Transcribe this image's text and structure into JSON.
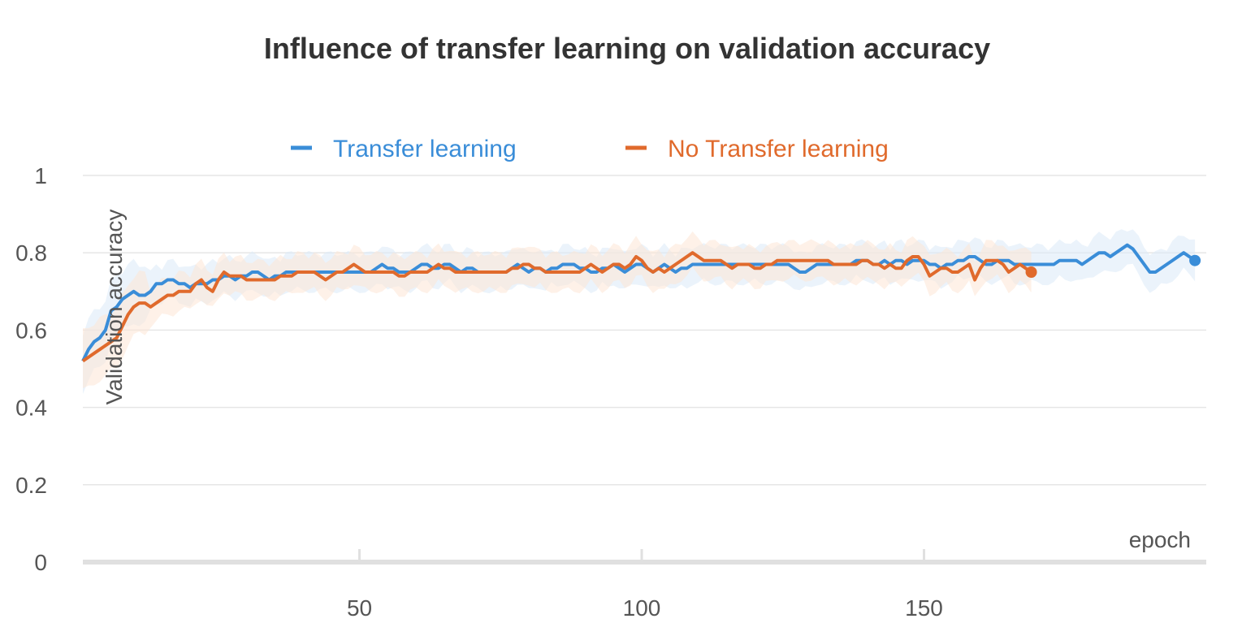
{
  "chart_data": {
    "type": "line",
    "title": "Influence of transfer learning on validation accuracy",
    "xlabel": "epoch",
    "ylabel": "Validation accuracy",
    "xlim": [
      1,
      200
    ],
    "ylim": [
      0,
      1
    ],
    "x_ticks": [
      50,
      100,
      150
    ],
    "y_ticks": [
      0,
      0.2,
      0.4,
      0.6,
      0.8,
      1
    ],
    "y_tick_labels": [
      "0",
      "0.2",
      "0.4",
      "0.6",
      "0.8",
      "1"
    ],
    "x_tick_labels": [
      "50",
      "100",
      "150"
    ],
    "grid": true,
    "legend_position": "top-center",
    "series": [
      {
        "name": "Transfer learning",
        "color": "#3a8dd8",
        "band_color": "#dbe9f8",
        "start_x": 1,
        "values": [
          0.52,
          0.55,
          0.57,
          0.58,
          0.6,
          0.65,
          0.66,
          0.68,
          0.69,
          0.7,
          0.69,
          0.69,
          0.7,
          0.72,
          0.72,
          0.73,
          0.73,
          0.72,
          0.72,
          0.71,
          0.72,
          0.72,
          0.72,
          0.73,
          0.73,
          0.74,
          0.74,
          0.73,
          0.74,
          0.74,
          0.75,
          0.75,
          0.74,
          0.73,
          0.74,
          0.74,
          0.75,
          0.75,
          0.75,
          0.75,
          0.75,
          0.75,
          0.75,
          0.75,
          0.75,
          0.75,
          0.75,
          0.75,
          0.75,
          0.75,
          0.75,
          0.75,
          0.76,
          0.77,
          0.76,
          0.76,
          0.75,
          0.75,
          0.75,
          0.76,
          0.77,
          0.77,
          0.76,
          0.76,
          0.77,
          0.77,
          0.76,
          0.75,
          0.76,
          0.76,
          0.75,
          0.75,
          0.75,
          0.75,
          0.75,
          0.75,
          0.76,
          0.77,
          0.76,
          0.75,
          0.76,
          0.76,
          0.75,
          0.76,
          0.76,
          0.77,
          0.77,
          0.77,
          0.76,
          0.76,
          0.75,
          0.75,
          0.76,
          0.76,
          0.77,
          0.76,
          0.75,
          0.76,
          0.77,
          0.77,
          0.76,
          0.75,
          0.76,
          0.77,
          0.76,
          0.75,
          0.76,
          0.76,
          0.77,
          0.77,
          0.77,
          0.77,
          0.77,
          0.77,
          0.77,
          0.77,
          0.77,
          0.77,
          0.77,
          0.77,
          0.77,
          0.77,
          0.77,
          0.77,
          0.77,
          0.77,
          0.76,
          0.75,
          0.75,
          0.76,
          0.77,
          0.77,
          0.77,
          0.77,
          0.77,
          0.77,
          0.77,
          0.78,
          0.78,
          0.78,
          0.77,
          0.77,
          0.78,
          0.77,
          0.78,
          0.78,
          0.77,
          0.78,
          0.78,
          0.78,
          0.77,
          0.77,
          0.76,
          0.77,
          0.77,
          0.78,
          0.78,
          0.79,
          0.79,
          0.78,
          0.77,
          0.77,
          0.78,
          0.78,
          0.78,
          0.77,
          0.77,
          0.77,
          0.77,
          0.77,
          0.77,
          0.77,
          0.77,
          0.78,
          0.78,
          0.78,
          0.78,
          0.77,
          0.78,
          0.79,
          0.8,
          0.8,
          0.79,
          0.8,
          0.81,
          0.82,
          0.81,
          0.79,
          0.77,
          0.75,
          0.75,
          0.76,
          0.77,
          0.78,
          0.79,
          0.8,
          0.79,
          0.78
        ]
      },
      {
        "name": "No Transfer learning",
        "color": "#e06a2c",
        "band_color": "#fde6d6",
        "start_x": 1,
        "values": [
          0.52,
          0.53,
          0.54,
          0.55,
          0.56,
          0.57,
          0.58,
          0.61,
          0.64,
          0.66,
          0.67,
          0.67,
          0.66,
          0.67,
          0.68,
          0.69,
          0.69,
          0.7,
          0.7,
          0.7,
          0.72,
          0.73,
          0.71,
          0.7,
          0.73,
          0.75,
          0.74,
          0.74,
          0.74,
          0.73,
          0.73,
          0.73,
          0.73,
          0.73,
          0.73,
          0.74,
          0.74,
          0.74,
          0.75,
          0.75,
          0.75,
          0.75,
          0.74,
          0.73,
          0.74,
          0.75,
          0.75,
          0.76,
          0.77,
          0.76,
          0.75,
          0.75,
          0.75,
          0.75,
          0.75,
          0.75,
          0.74,
          0.74,
          0.75,
          0.75,
          0.75,
          0.75,
          0.76,
          0.77,
          0.76,
          0.76,
          0.75,
          0.75,
          0.75,
          0.75,
          0.75,
          0.75,
          0.75,
          0.75,
          0.75,
          0.75,
          0.76,
          0.76,
          0.77,
          0.77,
          0.76,
          0.76,
          0.75,
          0.75,
          0.75,
          0.75,
          0.75,
          0.75,
          0.75,
          0.76,
          0.77,
          0.76,
          0.75,
          0.76,
          0.77,
          0.77,
          0.76,
          0.77,
          0.79,
          0.78,
          0.76,
          0.75,
          0.76,
          0.75,
          0.76,
          0.77,
          0.78,
          0.79,
          0.8,
          0.79,
          0.78,
          0.78,
          0.78,
          0.78,
          0.77,
          0.76,
          0.77,
          0.77,
          0.77,
          0.76,
          0.76,
          0.77,
          0.77,
          0.78,
          0.78,
          0.78,
          0.78,
          0.78,
          0.78,
          0.78,
          0.78,
          0.78,
          0.78,
          0.77,
          0.77,
          0.77,
          0.77,
          0.77,
          0.78,
          0.78,
          0.77,
          0.77,
          0.76,
          0.77,
          0.76,
          0.76,
          0.78,
          0.79,
          0.79,
          0.77,
          0.74,
          0.75,
          0.76,
          0.76,
          0.75,
          0.75,
          0.76,
          0.77,
          0.73,
          0.76,
          0.78,
          0.78,
          0.78,
          0.77,
          0.75,
          0.76,
          0.77,
          0.76,
          0.75
        ]
      }
    ]
  }
}
